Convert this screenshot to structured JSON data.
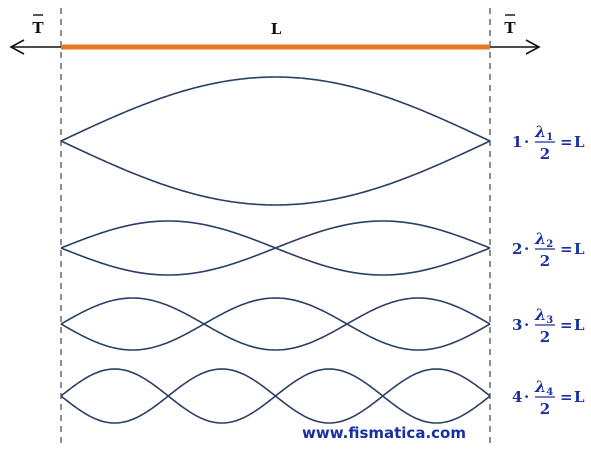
{
  "header": {
    "tension_left": "T",
    "tension_right": "T",
    "length_label": "L"
  },
  "modes": [
    {
      "n": 1,
      "coef": "1",
      "lambda_symbol": "λ",
      "lambda_sub": "1",
      "denominator": "2",
      "rhs": "L"
    },
    {
      "n": 2,
      "coef": "2",
      "lambda_symbol": "λ",
      "lambda_sub": "2",
      "denominator": "2",
      "rhs": "L"
    },
    {
      "n": 3,
      "coef": "3",
      "lambda_symbol": "λ",
      "lambda_sub": "3",
      "denominator": "2",
      "rhs": "L"
    },
    {
      "n": 4,
      "coef": "4",
      "lambda_symbol": "λ",
      "lambda_sub": "4",
      "denominator": "2",
      "rhs": "L"
    }
  ],
  "operators": {
    "dot": "·",
    "equals": "="
  },
  "footer": {
    "website": "www.fismatica.com"
  },
  "colors": {
    "string": "#e87722",
    "wave": "#2b3f66",
    "formula": "#1a2fa0",
    "arrow": "#111111",
    "guide": "#444444"
  }
}
